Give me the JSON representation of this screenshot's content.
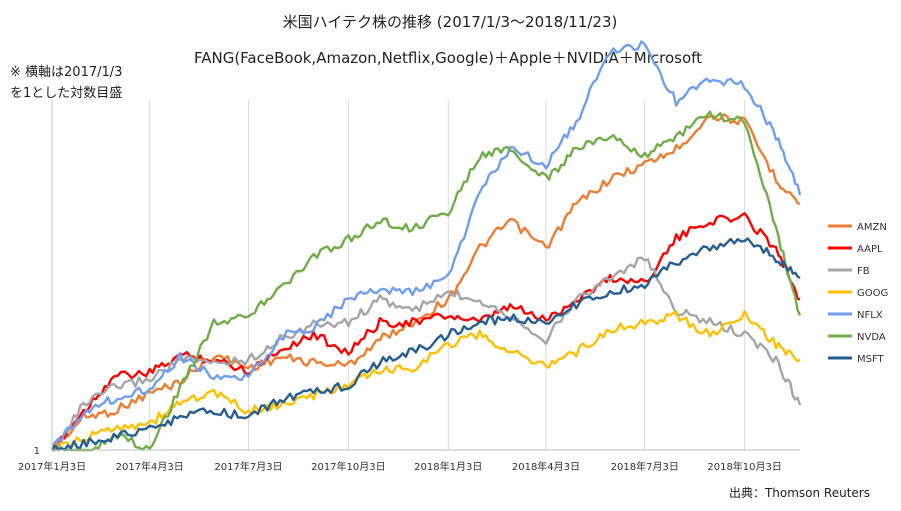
{
  "header": {
    "title": "米国ハイテク株の推移 (2017/1/3～2018/11/23)",
    "subtitle": "FANG(FaceBook,Amazon,Netflix,Google)＋Apple＋NVIDIA＋Microsoft"
  },
  "note": {
    "line1": "※ 横軸は2017/1/3",
    "line2": "を1とした対数目盛"
  },
  "source": "出典：Thomson Reuters",
  "colors": {
    "AMZN": "#ed7d31",
    "AAPL": "#ff0000",
    "FB": "#a5a5a5",
    "GOOG": "#ffc000",
    "NFLX": "#6f9ef0",
    "NVDA": "#70ad47",
    "MSFT": "#255e91",
    "grid": "#d9d9d9",
    "axis": "#bfbfbf"
  },
  "chart_data": {
    "type": "line",
    "title": "米国ハイテク株の推移 (2017/1/3～2018/11/23)",
    "subtitle": "FANG(FaceBook,Amazon,Netflix,Google)＋Apple＋NVIDIA＋Microsoft",
    "yscale": "log",
    "ylim": [
      1,
      3.3
    ],
    "y_tick_labels": [
      "1"
    ],
    "xlim": [
      "2017-01-03",
      "2018-11-23"
    ],
    "x_tick_labels": [
      "2017年1月3日",
      "2017年4月3日",
      "2017年7月3日",
      "2017年10月3日",
      "2018年1月3日",
      "2018年4月3日",
      "2018年7月3日",
      "2018年10月3日"
    ],
    "x_ticks": [
      "2017-01-03",
      "2017-04-03",
      "2017-07-03",
      "2017-10-03",
      "2018-01-03",
      "2018-04-03",
      "2018-07-03",
      "2018-10-03"
    ],
    "grid": "vertical",
    "legend_position": "right",
    "series": [
      {
        "name": "AMZN",
        "points": [
          [
            "2017-01-03",
            1.0
          ],
          [
            "2017-02-01",
            1.1
          ],
          [
            "2017-03-01",
            1.12
          ],
          [
            "2017-04-03",
            1.18
          ],
          [
            "2017-05-01",
            1.22
          ],
          [
            "2017-06-01",
            1.32
          ],
          [
            "2017-07-03",
            1.27
          ],
          [
            "2017-08-01",
            1.31
          ],
          [
            "2017-09-01",
            1.29
          ],
          [
            "2017-10-03",
            1.28
          ],
          [
            "2017-11-01",
            1.38
          ],
          [
            "2017-12-01",
            1.45
          ],
          [
            "2018-01-03",
            1.55
          ],
          [
            "2018-02-01",
            1.8
          ],
          [
            "2018-03-01",
            1.95
          ],
          [
            "2018-04-03",
            1.8
          ],
          [
            "2018-05-01",
            2.05
          ],
          [
            "2018-06-01",
            2.2
          ],
          [
            "2018-07-03",
            2.3
          ],
          [
            "2018-08-01",
            2.4
          ],
          [
            "2018-09-01",
            2.65
          ],
          [
            "2018-10-03",
            2.6
          ],
          [
            "2018-11-01",
            2.2
          ],
          [
            "2018-11-23",
            2.05
          ]
        ]
      },
      {
        "name": "AAPL",
        "points": [
          [
            "2017-01-03",
            1.0
          ],
          [
            "2017-02-01",
            1.12
          ],
          [
            "2017-03-01",
            1.24
          ],
          [
            "2017-04-03",
            1.25
          ],
          [
            "2017-05-01",
            1.32
          ],
          [
            "2017-06-01",
            1.3
          ],
          [
            "2017-07-03",
            1.26
          ],
          [
            "2017-08-01",
            1.34
          ],
          [
            "2017-09-01",
            1.4
          ],
          [
            "2017-10-03",
            1.33
          ],
          [
            "2017-11-01",
            1.45
          ],
          [
            "2017-12-01",
            1.45
          ],
          [
            "2018-01-03",
            1.48
          ],
          [
            "2018-02-01",
            1.45
          ],
          [
            "2018-03-01",
            1.52
          ],
          [
            "2018-04-03",
            1.46
          ],
          [
            "2018-05-01",
            1.55
          ],
          [
            "2018-06-01",
            1.65
          ],
          [
            "2018-07-03",
            1.63
          ],
          [
            "2018-08-01",
            1.85
          ],
          [
            "2018-09-01",
            1.95
          ],
          [
            "2018-10-03",
            1.97
          ],
          [
            "2018-11-01",
            1.8
          ],
          [
            "2018-11-23",
            1.55
          ]
        ]
      },
      {
        "name": "FB",
        "points": [
          [
            "2017-01-03",
            1.0
          ],
          [
            "2017-02-01",
            1.14
          ],
          [
            "2017-03-01",
            1.2
          ],
          [
            "2017-04-03",
            1.23
          ],
          [
            "2017-05-01",
            1.3
          ],
          [
            "2017-06-01",
            1.29
          ],
          [
            "2017-07-03",
            1.3
          ],
          [
            "2017-08-01",
            1.38
          ],
          [
            "2017-09-01",
            1.44
          ],
          [
            "2017-10-03",
            1.45
          ],
          [
            "2017-11-01",
            1.55
          ],
          [
            "2017-12-01",
            1.5
          ],
          [
            "2018-01-03",
            1.58
          ],
          [
            "2018-02-01",
            1.55
          ],
          [
            "2018-03-01",
            1.48
          ],
          [
            "2018-04-03",
            1.38
          ],
          [
            "2018-05-01",
            1.55
          ],
          [
            "2018-06-01",
            1.65
          ],
          [
            "2018-07-03",
            1.75
          ],
          [
            "2018-08-01",
            1.5
          ],
          [
            "2018-09-01",
            1.45
          ],
          [
            "2018-10-03",
            1.4
          ],
          [
            "2018-11-01",
            1.3
          ],
          [
            "2018-11-23",
            1.14
          ]
        ]
      },
      {
        "name": "GOOG",
        "points": [
          [
            "2017-01-03",
            1.0
          ],
          [
            "2017-02-01",
            1.03
          ],
          [
            "2017-03-01",
            1.07
          ],
          [
            "2017-04-03",
            1.08
          ],
          [
            "2017-05-01",
            1.15
          ],
          [
            "2017-06-01",
            1.18
          ],
          [
            "2017-07-03",
            1.12
          ],
          [
            "2017-08-01",
            1.14
          ],
          [
            "2017-09-01",
            1.17
          ],
          [
            "2017-10-03",
            1.21
          ],
          [
            "2017-11-01",
            1.26
          ],
          [
            "2017-12-01",
            1.27
          ],
          [
            "2018-01-03",
            1.36
          ],
          [
            "2018-02-01",
            1.4
          ],
          [
            "2018-03-01",
            1.33
          ],
          [
            "2018-04-03",
            1.28
          ],
          [
            "2018-05-01",
            1.33
          ],
          [
            "2018-06-01",
            1.42
          ],
          [
            "2018-07-03",
            1.45
          ],
          [
            "2018-08-01",
            1.48
          ],
          [
            "2018-09-01",
            1.4
          ],
          [
            "2018-10-03",
            1.48
          ],
          [
            "2018-11-01",
            1.36
          ],
          [
            "2018-11-23",
            1.3
          ]
        ]
      },
      {
        "name": "NFLX",
        "points": [
          [
            "2017-01-03",
            1.0
          ],
          [
            "2017-02-01",
            1.12
          ],
          [
            "2017-03-01",
            1.16
          ],
          [
            "2017-04-03",
            1.2
          ],
          [
            "2017-05-01",
            1.31
          ],
          [
            "2017-06-01",
            1.24
          ],
          [
            "2017-07-03",
            1.23
          ],
          [
            "2017-08-01",
            1.39
          ],
          [
            "2017-09-01",
            1.43
          ],
          [
            "2017-10-03",
            1.55
          ],
          [
            "2017-11-01",
            1.6
          ],
          [
            "2017-12-01",
            1.58
          ],
          [
            "2018-01-03",
            1.65
          ],
          [
            "2018-02-01",
            2.12
          ],
          [
            "2018-03-01",
            2.4
          ],
          [
            "2018-04-03",
            2.3
          ],
          [
            "2018-05-01",
            2.6
          ],
          [
            "2018-06-01",
            3.2
          ],
          [
            "2018-07-03",
            3.25
          ],
          [
            "2018-08-01",
            2.75
          ],
          [
            "2018-09-01",
            2.95
          ],
          [
            "2018-10-03",
            2.9
          ],
          [
            "2018-11-01",
            2.5
          ],
          [
            "2018-11-23",
            2.1
          ]
        ]
      },
      {
        "name": "NVDA",
        "points": [
          [
            "2017-01-03",
            1.0
          ],
          [
            "2017-02-01",
            0.98
          ],
          [
            "2017-03-01",
            1.05
          ],
          [
            "2017-04-03",
            1.0
          ],
          [
            "2017-05-01",
            1.2
          ],
          [
            "2017-06-01",
            1.45
          ],
          [
            "2017-07-03",
            1.48
          ],
          [
            "2017-08-01",
            1.6
          ],
          [
            "2017-09-01",
            1.75
          ],
          [
            "2017-10-03",
            1.85
          ],
          [
            "2017-11-01",
            1.95
          ],
          [
            "2017-12-01",
            1.9
          ],
          [
            "2018-01-03",
            2.0
          ],
          [
            "2018-02-01",
            2.35
          ],
          [
            "2018-03-01",
            2.4
          ],
          [
            "2018-04-03",
            2.2
          ],
          [
            "2018-05-01",
            2.4
          ],
          [
            "2018-06-01",
            2.5
          ],
          [
            "2018-07-03",
            2.35
          ],
          [
            "2018-08-01",
            2.5
          ],
          [
            "2018-09-01",
            2.65
          ],
          [
            "2018-10-03",
            2.6
          ],
          [
            "2018-11-01",
            1.9
          ],
          [
            "2018-11-23",
            1.48
          ]
        ]
      },
      {
        "name": "MSFT",
        "points": [
          [
            "2017-01-03",
            1.0
          ],
          [
            "2017-02-01",
            1.02
          ],
          [
            "2017-03-01",
            1.04
          ],
          [
            "2017-04-03",
            1.06
          ],
          [
            "2017-05-01",
            1.1
          ],
          [
            "2017-06-01",
            1.12
          ],
          [
            "2017-07-03",
            1.1
          ],
          [
            "2017-08-01",
            1.16
          ],
          [
            "2017-09-01",
            1.18
          ],
          [
            "2017-10-03",
            1.21
          ],
          [
            "2017-11-01",
            1.29
          ],
          [
            "2017-12-01",
            1.33
          ],
          [
            "2018-01-03",
            1.4
          ],
          [
            "2018-02-01",
            1.45
          ],
          [
            "2018-03-01",
            1.47
          ],
          [
            "2018-04-03",
            1.45
          ],
          [
            "2018-05-01",
            1.53
          ],
          [
            "2018-06-01",
            1.58
          ],
          [
            "2018-07-03",
            1.62
          ],
          [
            "2018-08-01",
            1.73
          ],
          [
            "2018-09-01",
            1.8
          ],
          [
            "2018-10-03",
            1.85
          ],
          [
            "2018-11-01",
            1.75
          ],
          [
            "2018-11-23",
            1.65
          ]
        ]
      }
    ]
  }
}
